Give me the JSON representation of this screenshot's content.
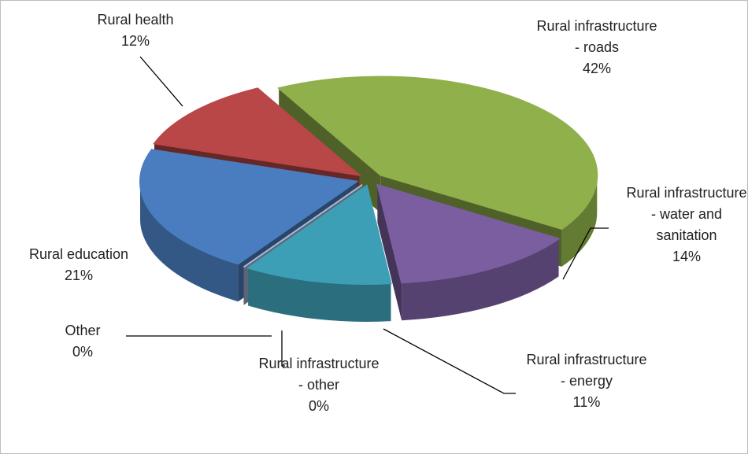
{
  "chart_data": {
    "type": "pie",
    "categories": [
      "Rural infrastructure - roads",
      "Rural infrastructure - water and sanitation",
      "Rural infrastructure - energy",
      "Rural infrastructure - other",
      "Other",
      "Rural education",
      "Rural health"
    ],
    "values": [
      42,
      14,
      11,
      0,
      0,
      21,
      12
    ],
    "value_labels": [
      "42%",
      "14%",
      "11%",
      "0%",
      "0%",
      "21%",
      "12%"
    ],
    "colors": [
      "#8fb04a",
      "#7b5ea0",
      "#3d9fb5",
      "#e27f2f",
      "#a4b8d8",
      "#4a7dbf",
      "#b94747"
    ]
  }
}
